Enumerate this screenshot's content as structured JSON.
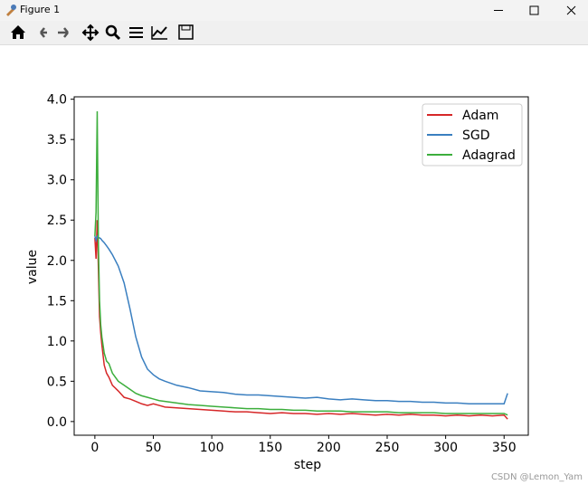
{
  "window": {
    "title": "Figure 1"
  },
  "watermark": "CSDN @Lemon_Yam",
  "chart_data": {
    "type": "line",
    "x": [
      0,
      1,
      2,
      3,
      4,
      5,
      6,
      8,
      10,
      12,
      15,
      20,
      25,
      30,
      35,
      40,
      45,
      50,
      55,
      60,
      70,
      80,
      90,
      100,
      110,
      120,
      130,
      140,
      150,
      160,
      170,
      180,
      190,
      200,
      210,
      220,
      230,
      240,
      250,
      260,
      270,
      280,
      290,
      300,
      310,
      320,
      330,
      340,
      350,
      353
    ],
    "series": [
      {
        "name": "Adam",
        "color": "#d62728",
        "values": [
          2.28,
          2.02,
          2.5,
          1.9,
          1.3,
          1.1,
          0.95,
          0.7,
          0.6,
          0.55,
          0.45,
          0.38,
          0.3,
          0.28,
          0.25,
          0.22,
          0.2,
          0.22,
          0.2,
          0.18,
          0.17,
          0.16,
          0.15,
          0.14,
          0.13,
          0.12,
          0.12,
          0.11,
          0.1,
          0.11,
          0.1,
          0.1,
          0.09,
          0.1,
          0.09,
          0.1,
          0.09,
          0.08,
          0.09,
          0.08,
          0.09,
          0.08,
          0.08,
          0.07,
          0.08,
          0.07,
          0.08,
          0.07,
          0.08,
          0.03
        ]
      },
      {
        "name": "SGD",
        "color": "#3a7fc0",
        "values": [
          2.3,
          2.25,
          2.3,
          2.28,
          2.28,
          2.27,
          2.25,
          2.22,
          2.18,
          2.14,
          2.07,
          1.93,
          1.72,
          1.4,
          1.05,
          0.8,
          0.65,
          0.58,
          0.53,
          0.5,
          0.45,
          0.42,
          0.38,
          0.37,
          0.36,
          0.34,
          0.33,
          0.33,
          0.32,
          0.31,
          0.3,
          0.29,
          0.3,
          0.28,
          0.27,
          0.28,
          0.27,
          0.26,
          0.26,
          0.25,
          0.25,
          0.24,
          0.24,
          0.23,
          0.23,
          0.22,
          0.22,
          0.22,
          0.22,
          0.35
        ]
      },
      {
        "name": "Adagrad",
        "color": "#3cae3c",
        "values": [
          2.3,
          2.6,
          3.85,
          2.2,
          1.5,
          1.2,
          1.05,
          0.85,
          0.75,
          0.72,
          0.6,
          0.5,
          0.45,
          0.4,
          0.35,
          0.32,
          0.3,
          0.28,
          0.26,
          0.25,
          0.23,
          0.21,
          0.2,
          0.19,
          0.18,
          0.17,
          0.16,
          0.16,
          0.15,
          0.15,
          0.14,
          0.14,
          0.13,
          0.13,
          0.13,
          0.12,
          0.12,
          0.12,
          0.12,
          0.11,
          0.11,
          0.11,
          0.11,
          0.1,
          0.1,
          0.1,
          0.1,
          0.1,
          0.1,
          0.08
        ]
      }
    ],
    "x_label": "step",
    "y_label": "value",
    "xlim": [
      -17.7,
      370.7
    ],
    "ylim": [
      -0.17,
      4.03
    ],
    "xticks": [
      0,
      50,
      100,
      150,
      200,
      250,
      300,
      350
    ],
    "yticks": [
      {
        "value": 0,
        "label": "0.0"
      },
      {
        "value": 0.5,
        "label": "0.5"
      },
      {
        "value": 1,
        "label": "1.0"
      },
      {
        "value": 1.5,
        "label": "1.5"
      },
      {
        "value": 2,
        "label": "2.0"
      },
      {
        "value": 2.5,
        "label": "2.5"
      },
      {
        "value": 3,
        "label": "3.0"
      },
      {
        "value": 3.5,
        "label": "3.5"
      },
      {
        "value": 4,
        "label": "4.0"
      }
    ],
    "legend": "upper right",
    "grid": false
  }
}
